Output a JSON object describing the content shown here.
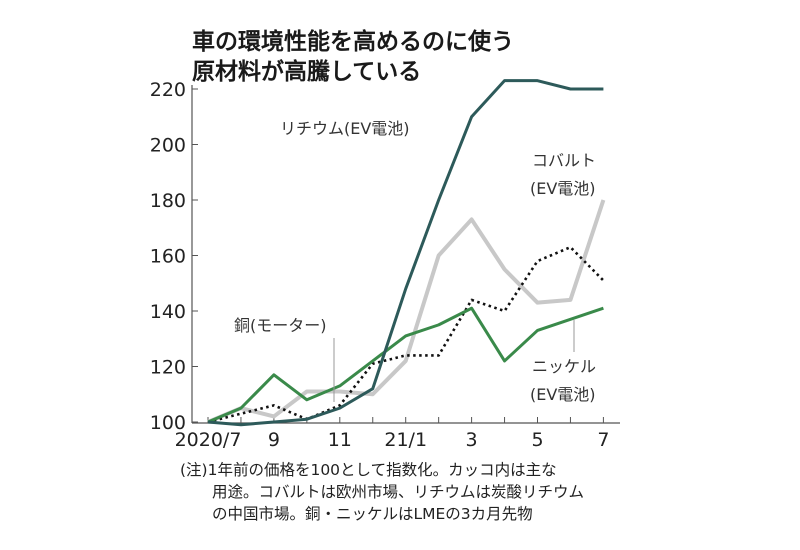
{
  "title_lines": [
    "車の環境性能を高めるのに使う",
    "原材料が高騰している"
  ],
  "note_lines": [
    "(注)1年前の価格を100として指数化。カッコ内は主な",
    "用途。コバルトは欧州市場、リチウムは炭酸リチウム",
    "の中国市場。銅・ニッケルはLMEの3カ月先物"
  ],
  "chart_data": {
    "type": "line",
    "title": "車の環境性能を高めるのに使う原材料が高騰している",
    "x": [
      "2020/7",
      "2020/8",
      "2020/9",
      "2020/10",
      "2020/11",
      "2020/12",
      "2021/1",
      "2021/2",
      "2021/3",
      "2021/4",
      "2021/5",
      "2021/6",
      "2021/7"
    ],
    "xtick_labels": [
      "2020/7",
      "",
      "9",
      "",
      "11",
      "",
      "21/1",
      "",
      "3",
      "",
      "5",
      "",
      "7"
    ],
    "yticks": [
      100,
      120,
      140,
      160,
      180,
      200,
      220
    ],
    "ylim": [
      100,
      222
    ],
    "grid": false,
    "series": [
      {
        "name": "リチウム",
        "label_lines": [
          "リチウム(EV電池)"
        ],
        "color": "#2d5a5a",
        "style": "solid",
        "values": [
          100,
          99,
          100,
          101,
          105,
          112,
          148,
          180,
          210,
          223,
          223,
          220,
          220
        ]
      },
      {
        "name": "コバルト",
        "label_lines": [
          "コバルト",
          "(EV電池)"
        ],
        "color": "#c8c8c8",
        "style": "solid",
        "values": [
          100,
          105,
          102,
          111,
          111,
          110,
          122,
          160,
          173,
          155,
          143,
          144,
          180
        ]
      },
      {
        "name": "ニッケル",
        "label_lines": [
          "ニッケル",
          "(EV電池)"
        ],
        "color": "#3a8a4a",
        "style": "solid",
        "values": [
          100,
          105,
          117,
          108,
          113,
          122,
          131,
          135,
          141,
          122,
          133,
          137,
          141
        ]
      },
      {
        "name": "銅",
        "label_lines": [
          "銅(モーター)"
        ],
        "color": "#111111",
        "style": "dotted",
        "values": [
          100,
          103,
          106,
          101,
          106,
          121,
          124,
          124,
          144,
          140,
          158,
          163,
          151
        ]
      }
    ]
  }
}
